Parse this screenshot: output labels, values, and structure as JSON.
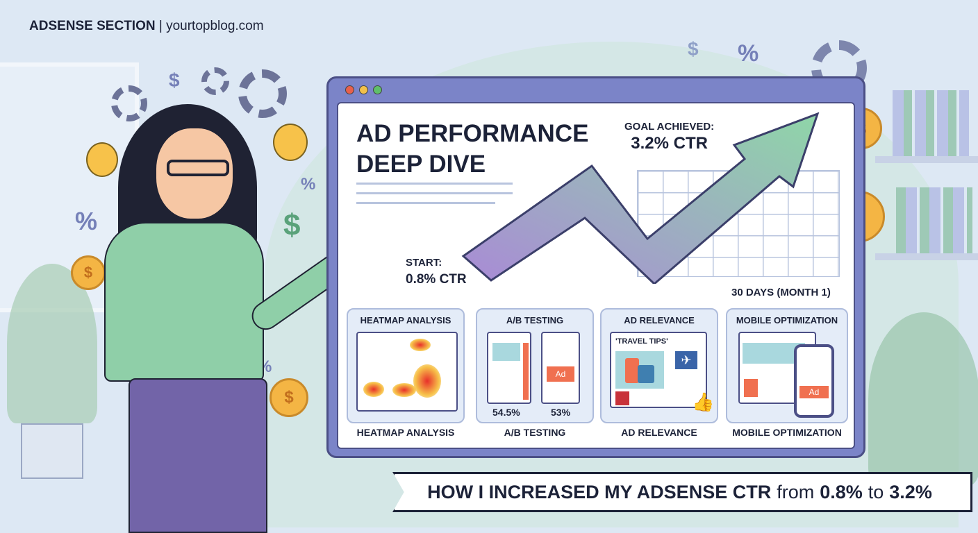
{
  "header": {
    "section": "ADSENSE SECTION",
    "separator": "|",
    "site": "yourtopblog.com"
  },
  "panel": {
    "title": "AD PERFORMANCE DEEP DIVE",
    "start_label": "START:",
    "start_value": "0.8% CTR",
    "goal_label": "GOAL ACHIEVED:",
    "goal_value": "3.2% CTR",
    "period": "30 DAYS (MONTH 1)"
  },
  "cards": [
    {
      "title": "HEATMAP ANALYSIS",
      "label": "HEATMAP ANALYSIS"
    },
    {
      "title": "A/B TESTING",
      "label": "A/B TESTING",
      "variant_a": "54.5%",
      "variant_b": "53%",
      "ad": "Ad"
    },
    {
      "title": "AD RELEVANCE",
      "label": "AD RELEVANCE",
      "headline": "'TRAVEL TIPS'"
    },
    {
      "title": "MOBILE OPTIMIZATION",
      "label": "MOBILE OPTIMIZATION",
      "ad": "Ad"
    }
  ],
  "banner": {
    "bold": "HOW I INCREASED MY ADSENSE CTR",
    "from": "from",
    "start": "0.8%",
    "to": "to",
    "end": "3.2%"
  },
  "decor": {
    "dollar": "$",
    "percent": "%"
  },
  "colors": {
    "window": "#7b84c8",
    "arrow_start": "#a98ad6",
    "arrow_end": "#8fd6a8",
    "ad": "#f07050",
    "shirt": "#8fcfa8",
    "pants": "#7264a8"
  }
}
